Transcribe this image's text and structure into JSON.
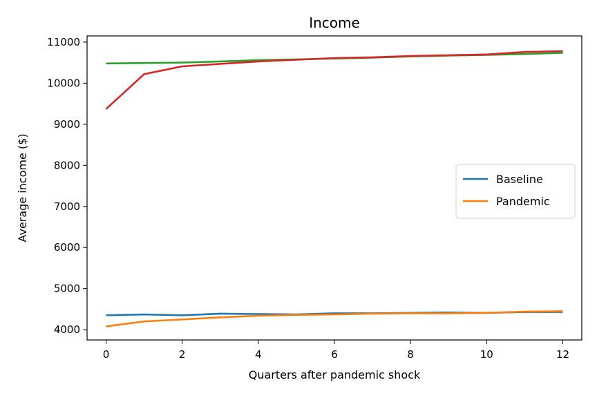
{
  "chart_data": {
    "type": "line",
    "title": "Income",
    "xlabel": "Quarters after pandemic shock",
    "ylabel": "Average income ($)",
    "xlim": [
      -0.5,
      12.5
    ],
    "ylim": [
      3750,
      11150
    ],
    "xticks": [
      0,
      2,
      4,
      6,
      8,
      10,
      12
    ],
    "yticks": [
      4000,
      5000,
      6000,
      7000,
      8000,
      9000,
      10000,
      11000
    ],
    "grid": false,
    "legend_position": "center-right",
    "x": [
      0,
      1,
      2,
      3,
      4,
      5,
      6,
      7,
      8,
      9,
      10,
      11,
      12
    ],
    "series": [
      {
        "name": "Baseline",
        "color": "#1f77b4",
        "values": [
          4350,
          4370,
          4350,
          4390,
          4380,
          4370,
          4400,
          4400,
          4410,
          4420,
          4410,
          4430,
          4430
        ]
      },
      {
        "name": "Pandemic",
        "color": "#ff7f0e",
        "values": [
          4080,
          4200,
          4250,
          4300,
          4340,
          4360,
          4370,
          4390,
          4400,
          4400,
          4410,
          4440,
          4450
        ]
      },
      {
        "color": "#2ca02c",
        "values": [
          10480,
          10490,
          10500,
          10530,
          10560,
          10580,
          10600,
          10620,
          10650,
          10670,
          10690,
          10710,
          10740
        ]
      },
      {
        "color": "#d62728",
        "values": [
          9370,
          10220,
          10410,
          10470,
          10530,
          10570,
          10610,
          10630,
          10660,
          10680,
          10700,
          10760,
          10780
        ]
      }
    ]
  }
}
